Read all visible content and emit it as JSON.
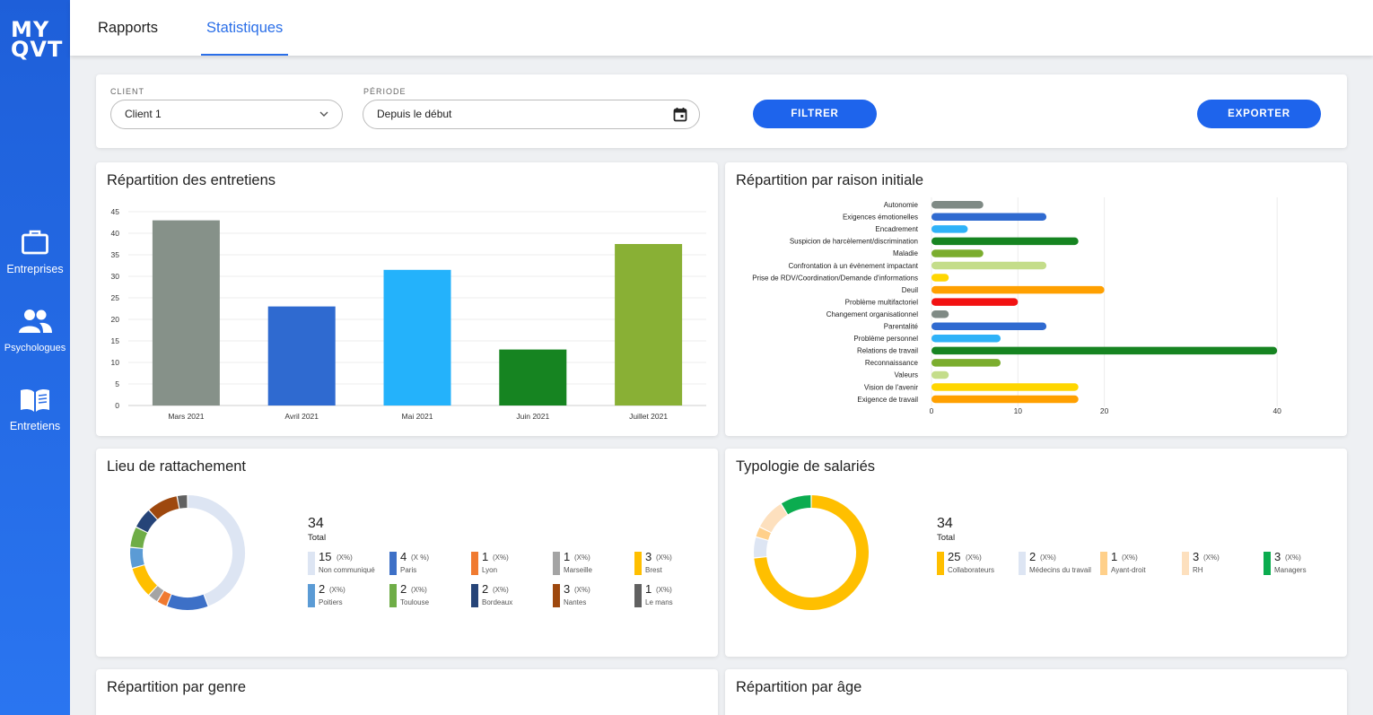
{
  "app": {
    "logo_line1": "MY",
    "logo_line2": "QVT"
  },
  "sidebar": {
    "items": [
      {
        "label": "Entreprises",
        "icon": "briefcase-icon"
      },
      {
        "label": "Psychologues",
        "icon": "people-icon"
      },
      {
        "label": "Entretiens",
        "icon": "book-icon"
      }
    ]
  },
  "header": {
    "tabs": [
      {
        "label": "Rapports",
        "active": false
      },
      {
        "label": "Statistiques",
        "active": true
      }
    ]
  },
  "filters": {
    "client_label": "CLIENT",
    "client_value": "Client 1",
    "period_label": "PÉRIODE",
    "period_value": "Depuis le début",
    "filter_button": "FILTRER",
    "export_button": "EXPORTER"
  },
  "cards": {
    "entretiens_title": "Répartition des entretiens",
    "raison_title": "Répartition par raison initiale",
    "lieu_title": "Lieu de rattachement",
    "typologie_title": "Typologie de salariés",
    "genre_title": "Répartition par genre",
    "age_title": "Répartition par âge"
  },
  "chart_data": [
    {
      "type": "bar",
      "title": "Répartition des entretiens",
      "categories": [
        "Mars 2021",
        "Avril 2021",
        "Mai 2021",
        "Juin 2021",
        "Juillet 2021"
      ],
      "values": [
        43,
        23,
        31.5,
        13,
        37.5
      ],
      "colors": [
        "#869189",
        "#2f6ad0",
        "#24b2fb",
        "#168421",
        "#89b035"
      ],
      "ylim": [
        0,
        45
      ],
      "yticks": [
        0,
        5,
        10,
        15,
        20,
        25,
        30,
        35,
        40,
        45
      ],
      "grid": true
    },
    {
      "type": "bar",
      "orientation": "horizontal",
      "title": "Répartition par raison initiale",
      "categories": [
        "Autonomie",
        "Exigences émotionelles",
        "Encadrement",
        "Suspicion de harcèlement/discrimination",
        "Maladie",
        "Confrontation à un évènement impactant",
        "Prise de RDV/Coordination/Demande d'informations",
        "Deuil",
        "Problème multifactoriel",
        "Changement organisationnel",
        "Parentalité",
        "Problème personnel",
        "Relations de travail",
        "Reconnaissance",
        "Valeurs",
        "Vision de l'avenir",
        "Exigence de travail"
      ],
      "values": [
        6,
        13.3,
        4.2,
        17,
        6,
        13.3,
        2,
        20,
        10,
        2,
        13.3,
        8,
        40,
        8,
        2,
        17,
        17
      ],
      "colors": [
        "#7f8a85",
        "#2f6ad0",
        "#2fb2f8",
        "#168421",
        "#7bad2e",
        "#c4dd8a",
        "#ffd600",
        "#ffa000",
        "#f21111",
        "#7f8a85",
        "#2f6ad0",
        "#2fb2f8",
        "#168421",
        "#7bad2e",
        "#c4dd8a",
        "#ffd600",
        "#ffa000"
      ],
      "xticks": [
        0,
        10,
        20,
        40
      ],
      "grid": true
    },
    {
      "type": "pie",
      "title": "Lieu de rattachement",
      "total": "34",
      "total_label": "Total",
      "slices": [
        {
          "name": "Non communiqué",
          "value": 15,
          "pct": "(X%)",
          "color": "#dde5f3"
        },
        {
          "name": "Paris",
          "value": 4,
          "pct": "(X %)",
          "color": "#3d70c7"
        },
        {
          "name": "Lyon",
          "value": 1,
          "pct": "(X%)",
          "color": "#f07a30"
        },
        {
          "name": "Marseille",
          "value": 1,
          "pct": "(X%)",
          "color": "#a4a4a4"
        },
        {
          "name": "Brest",
          "value": 3,
          "pct": "(X%)",
          "color": "#ffbf00"
        },
        {
          "name": "Poitiers",
          "value": 2,
          "pct": "(X%)",
          "color": "#5b9bd5"
        },
        {
          "name": "Toulouse",
          "value": 2,
          "pct": "(X%)",
          "color": "#6fad47"
        },
        {
          "name": "Bordeaux",
          "value": 2,
          "pct": "(X%)",
          "color": "#264478"
        },
        {
          "name": "Nantes",
          "value": 3,
          "pct": "(X%)",
          "color": "#9e480e"
        },
        {
          "name": "Le mans",
          "value": 1,
          "pct": "(X%)",
          "color": "#616161"
        }
      ]
    },
    {
      "type": "pie",
      "title": "Typologie de salariés",
      "total": "34",
      "total_label": "Total",
      "slices": [
        {
          "name": "Collaborateurs",
          "value": 25,
          "pct": "(X%)",
          "color": "#ffbf00"
        },
        {
          "name": "Médecins du travail",
          "value": 2,
          "pct": "(X%)",
          "color": "#dde5f3"
        },
        {
          "name": "Ayant-droit",
          "value": 1,
          "pct": "(X%)",
          "color": "#ffd08a"
        },
        {
          "name": "RH",
          "value": 3,
          "pct": "(X%)",
          "color": "#fde0be"
        },
        {
          "name": "Managers",
          "value": 3,
          "pct": "(X%)",
          "color": "#0bac4f"
        }
      ]
    }
  ]
}
